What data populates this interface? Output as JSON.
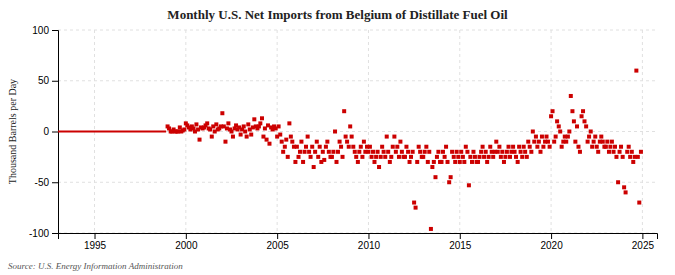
{
  "chart_data": {
    "type": "scatter",
    "title": "Monthly U.S. Net Imports from Belgium of Distillate Fuel Oil",
    "ylabel": "Thousand Barrels per Day",
    "source": "Source: U.S. Energy Information Administration",
    "xlim": [
      1993.0,
      2025.8
    ],
    "xticks": [
      1995,
      2000,
      2005,
      2010,
      2015,
      2020,
      2025
    ],
    "ylim": [
      -100,
      100
    ],
    "yticks": [
      -100,
      -50,
      0,
      50,
      100
    ],
    "grid": true,
    "series": [
      {
        "type": "line",
        "color": "#cc0000",
        "x": [
          1993.0,
          1993.08,
          1993.17,
          1993.25,
          1993.33,
          1993.42,
          1993.5,
          1993.58,
          1993.67,
          1993.75,
          1993.83,
          1993.92,
          1994.0,
          1994.08,
          1994.17,
          1994.25,
          1994.33,
          1994.42,
          1994.5,
          1994.58,
          1994.67,
          1994.75,
          1994.83,
          1994.92,
          1995.0,
          1995.08,
          1995.17,
          1995.25,
          1995.33,
          1995.42,
          1995.5,
          1995.58,
          1995.67,
          1995.75,
          1995.83,
          1995.92,
          1996.0,
          1996.08,
          1996.17,
          1996.25,
          1996.33,
          1996.42,
          1996.5,
          1996.58,
          1996.67,
          1996.75,
          1996.83,
          1996.92,
          1997.0,
          1997.08,
          1997.17,
          1997.25,
          1997.33,
          1997.42,
          1997.5,
          1997.58,
          1997.67,
          1997.75,
          1997.83,
          1997.92,
          1998.0,
          1998.08,
          1998.17,
          1998.25,
          1998.33,
          1998.42,
          1998.5,
          1998.58,
          1998.67,
          1998.75,
          1998.83,
          1998.92
        ],
        "values": [
          0,
          0,
          0,
          0,
          0,
          0,
          0,
          0,
          0,
          0,
          0,
          0,
          0,
          0,
          0,
          0,
          0,
          0,
          0,
          0,
          0,
          0,
          0,
          0,
          0,
          0,
          0,
          0,
          0,
          0,
          0,
          0,
          0,
          0,
          0,
          0,
          0,
          0,
          0,
          0,
          0,
          0,
          0,
          0,
          0,
          0,
          0,
          0,
          0,
          0,
          0,
          0,
          0,
          0,
          0,
          0,
          0,
          0,
          0,
          0,
          0,
          0,
          0,
          0,
          0,
          0,
          0,
          0,
          0,
          0,
          0,
          0
        ]
      },
      {
        "type": "scatter",
        "marker": "square",
        "color": "#cc0000",
        "x": [
          1999.0,
          1999.08,
          1999.17,
          1999.25,
          1999.33,
          1999.42,
          1999.5,
          1999.58,
          1999.67,
          1999.75,
          1999.83,
          1999.92,
          2000.0,
          2000.08,
          2000.17,
          2000.25,
          2000.33,
          2000.42,
          2000.5,
          2000.58,
          2000.67,
          2000.75,
          2000.83,
          2000.92,
          2001.0,
          2001.08,
          2001.17,
          2001.25,
          2001.33,
          2001.42,
          2001.5,
          2001.58,
          2001.67,
          2001.75,
          2001.83,
          2001.92,
          2002.0,
          2002.08,
          2002.17,
          2002.25,
          2002.33,
          2002.42,
          2002.5,
          2002.58,
          2002.67,
          2002.75,
          2002.83,
          2002.92,
          2003.0,
          2003.08,
          2003.17,
          2003.25,
          2003.33,
          2003.42,
          2003.5,
          2003.58,
          2003.67,
          2003.75,
          2003.83,
          2003.92,
          2004.0,
          2004.08,
          2004.17,
          2004.25,
          2004.33,
          2004.42,
          2004.5,
          2004.58,
          2004.67,
          2004.75,
          2004.83,
          2004.92,
          2005.0,
          2005.08,
          2005.17,
          2005.25,
          2005.33,
          2005.42,
          2005.5,
          2005.58,
          2005.67,
          2005.75,
          2005.83,
          2005.92,
          2006.0,
          2006.08,
          2006.17,
          2006.25,
          2006.33,
          2006.42,
          2006.5,
          2006.58,
          2006.67,
          2006.75,
          2006.83,
          2006.92,
          2007.0,
          2007.08,
          2007.17,
          2007.25,
          2007.33,
          2007.42,
          2007.5,
          2007.58,
          2007.67,
          2007.75,
          2007.83,
          2007.92,
          2008.0,
          2008.08,
          2008.17,
          2008.25,
          2008.33,
          2008.42,
          2008.5,
          2008.58,
          2008.67,
          2008.75,
          2008.83,
          2008.92,
          2009.0,
          2009.08,
          2009.17,
          2009.25,
          2009.33,
          2009.42,
          2009.5,
          2009.58,
          2009.67,
          2009.75,
          2009.83,
          2009.92,
          2010.0,
          2010.08,
          2010.17,
          2010.25,
          2010.33,
          2010.42,
          2010.5,
          2010.58,
          2010.67,
          2010.75,
          2010.83,
          2010.92,
          2011.0,
          2011.08,
          2011.17,
          2011.25,
          2011.33,
          2011.42,
          2011.5,
          2011.58,
          2011.67,
          2011.75,
          2011.83,
          2011.92,
          2012.0,
          2012.08,
          2012.17,
          2012.25,
          2012.33,
          2012.42,
          2012.5,
          2012.58,
          2012.67,
          2012.75,
          2012.83,
          2012.92,
          2013.0,
          2013.08,
          2013.17,
          2013.25,
          2013.33,
          2013.42,
          2013.5,
          2013.58,
          2013.67,
          2013.75,
          2013.83,
          2013.92,
          2014.0,
          2014.08,
          2014.17,
          2014.25,
          2014.33,
          2014.42,
          2014.5,
          2014.58,
          2014.67,
          2014.75,
          2014.83,
          2014.92,
          2015.0,
          2015.08,
          2015.17,
          2015.25,
          2015.33,
          2015.42,
          2015.5,
          2015.58,
          2015.67,
          2015.75,
          2015.83,
          2015.92,
          2016.0,
          2016.08,
          2016.17,
          2016.25,
          2016.33,
          2016.42,
          2016.5,
          2016.58,
          2016.67,
          2016.75,
          2016.83,
          2016.92,
          2017.0,
          2017.08,
          2017.17,
          2017.25,
          2017.33,
          2017.42,
          2017.5,
          2017.58,
          2017.67,
          2017.75,
          2017.83,
          2017.92,
          2018.0,
          2018.08,
          2018.17,
          2018.25,
          2018.33,
          2018.42,
          2018.5,
          2018.58,
          2018.67,
          2018.75,
          2018.83,
          2018.92,
          2019.0,
          2019.08,
          2019.17,
          2019.25,
          2019.33,
          2019.42,
          2019.5,
          2019.58,
          2019.67,
          2019.75,
          2019.83,
          2019.92,
          2020.0,
          2020.08,
          2020.17,
          2020.25,
          2020.33,
          2020.42,
          2020.5,
          2020.58,
          2020.67,
          2020.75,
          2020.83,
          2020.92,
          2021.0,
          2021.08,
          2021.17,
          2021.25,
          2021.33,
          2021.42,
          2021.5,
          2021.58,
          2021.67,
          2021.75,
          2021.83,
          2021.92,
          2022.0,
          2022.08,
          2022.17,
          2022.25,
          2022.33,
          2022.42,
          2022.5,
          2022.58,
          2022.67,
          2022.75,
          2022.83,
          2022.92,
          2023.0,
          2023.08,
          2023.17,
          2023.25,
          2023.33,
          2023.42,
          2023.5,
          2023.58,
          2023.67,
          2023.75,
          2023.83,
          2023.92,
          2024.0,
          2024.08,
          2024.17,
          2024.25,
          2024.33,
          2024.42,
          2024.5,
          2024.58,
          2024.67,
          2024.75,
          2024.83,
          2024.92
        ],
        "values": [
          5,
          3,
          0,
          0,
          2,
          0,
          0,
          0,
          4,
          0,
          1,
          2,
          8,
          6,
          4,
          2,
          5,
          3,
          0,
          7,
          2,
          -8,
          4,
          3,
          4,
          6,
          8,
          3,
          2,
          -5,
          5,
          0,
          7,
          2,
          3,
          5,
          18,
          5,
          -10,
          3,
          8,
          2,
          0,
          -5,
          3,
          6,
          2,
          4,
          -3,
          2,
          5,
          0,
          -5,
          7,
          2,
          -3,
          4,
          12,
          5,
          3,
          5,
          8,
          13,
          -5,
          3,
          -8,
          6,
          -12,
          4,
          2,
          5,
          3,
          -5,
          5,
          -3,
          -10,
          -20,
          -15,
          -8,
          -25,
          8,
          -5,
          -10,
          -15,
          -30,
          -15,
          -25,
          -20,
          -10,
          -30,
          -20,
          -15,
          -5,
          -20,
          -25,
          -15,
          -35,
          -20,
          -10,
          -25,
          -15,
          -30,
          -20,
          -28,
          -15,
          -10,
          -20,
          -25,
          -25,
          -20,
          0,
          -30,
          -20,
          -10,
          -15,
          -25,
          20,
          -5,
          -10,
          -15,
          5,
          -5,
          -15,
          -20,
          -25,
          -30,
          -20,
          -15,
          -25,
          -10,
          -20,
          -15,
          -20,
          -15,
          -25,
          -20,
          -30,
          -25,
          -20,
          -35,
          -25,
          -15,
          -20,
          -25,
          -5,
          -20,
          -30,
          -25,
          -15,
          -5,
          -20,
          -15,
          -25,
          -10,
          -20,
          -25,
          -25,
          -15,
          -20,
          -30,
          -25,
          -20,
          -70,
          -75,
          -30,
          -15,
          -20,
          -25,
          -25,
          -20,
          -15,
          -30,
          -20,
          -96,
          -35,
          -30,
          -45,
          -25,
          -20,
          -30,
          -30,
          -20,
          -25,
          -15,
          -30,
          -50,
          -45,
          -20,
          -25,
          -30,
          -20,
          -25,
          -30,
          -20,
          -25,
          -30,
          -15,
          -20,
          -53,
          -25,
          -30,
          -20,
          -25,
          -30,
          -30,
          -25,
          -20,
          -15,
          -25,
          -20,
          -30,
          -25,
          -15,
          -20,
          -25,
          -20,
          -10,
          -20,
          -15,
          -25,
          -20,
          -30,
          -25,
          -20,
          -15,
          -25,
          -20,
          -15,
          -20,
          -25,
          -30,
          -15,
          -20,
          -25,
          -15,
          -20,
          -25,
          -10,
          -15,
          -20,
          0,
          -10,
          -5,
          -15,
          -10,
          -20,
          -5,
          -15,
          -10,
          -5,
          -10,
          -15,
          15,
          20,
          -10,
          -5,
          10,
          5,
          0,
          -15,
          -10,
          -5,
          -10,
          -5,
          0,
          35,
          20,
          10,
          -10,
          5,
          -15,
          -20,
          15,
          20,
          10,
          5,
          -10,
          -5,
          0,
          -15,
          -10,
          -5,
          -15,
          -20,
          -10,
          -5,
          -10,
          -15,
          -15,
          -10,
          -20,
          -15,
          -10,
          -20,
          -15,
          -25,
          -50,
          -20,
          -15,
          -25,
          -55,
          -60,
          -20,
          -15,
          -25,
          -20,
          -30,
          -25,
          60,
          -25,
          -70,
          -20
        ]
      }
    ]
  }
}
